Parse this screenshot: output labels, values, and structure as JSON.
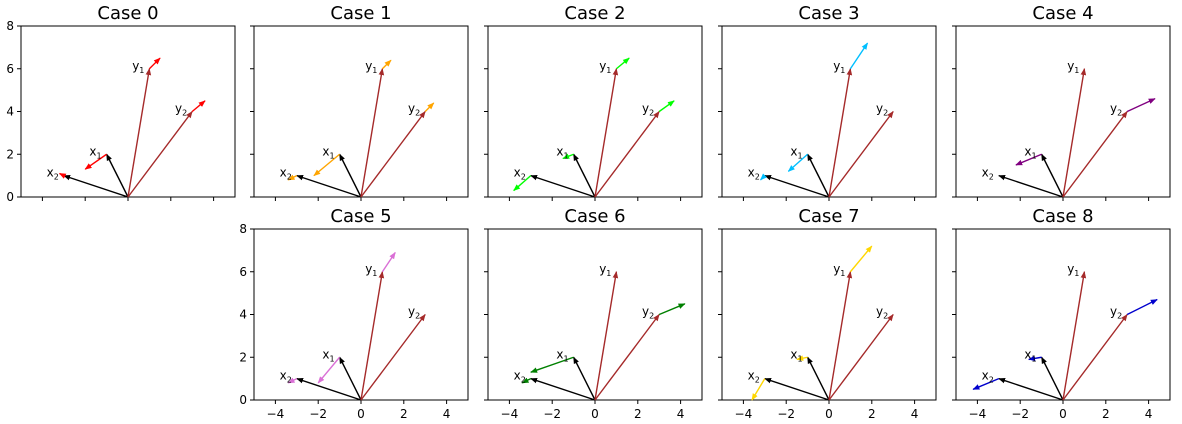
{
  "chart_data": {
    "type": "vector-field-grid",
    "xlim": [
      -5,
      5
    ],
    "ylim": [
      0,
      8
    ],
    "xticks": [
      -4,
      -2,
      0,
      2,
      4
    ],
    "yticks": [
      0,
      2,
      4,
      6,
      8
    ],
    "x_tick_labels": [
      "−4",
      "−2",
      "0",
      "2",
      "4"
    ],
    "y_tick_labels": [
      "0",
      "2",
      "4",
      "6",
      "8"
    ],
    "base_vectors": [
      {
        "name": "x1",
        "letter": "x",
        "sub": "1",
        "from": [
          0,
          0
        ],
        "to": [
          -1,
          2
        ],
        "color": "#000000"
      },
      {
        "name": "x2",
        "letter": "x",
        "sub": "2",
        "from": [
          0,
          0
        ],
        "to": [
          -3,
          1
        ],
        "color": "#000000"
      },
      {
        "name": "y1",
        "letter": "y",
        "sub": "1",
        "from": [
          0,
          0
        ],
        "to": [
          1,
          6
        ],
        "color": "#a52a2a"
      },
      {
        "name": "y2",
        "letter": "y",
        "sub": "2",
        "from": [
          0,
          0
        ],
        "to": [
          3,
          4
        ],
        "color": "#a52a2a"
      }
    ],
    "cases": [
      {
        "title": "Case 0",
        "color": "#ff0000",
        "residuals": {
          "x1": [
            -1.0,
            -0.7
          ],
          "x2": [
            -0.2,
            0.1
          ],
          "y1": [
            0.5,
            0.5
          ],
          "y2": [
            0.6,
            0.5
          ]
        }
      },
      {
        "title": "Case 1",
        "color": "#ffa500",
        "residuals": {
          "x1": [
            -1.2,
            -1.0
          ],
          "x2": [
            -0.4,
            -0.2
          ],
          "y1": [
            0.4,
            0.4
          ],
          "y2": [
            0.4,
            0.4
          ]
        }
      },
      {
        "title": "Case 2",
        "color": "#00ff00",
        "residuals": {
          "x1": [
            -0.5,
            -0.2
          ],
          "x2": [
            -0.8,
            -0.7
          ],
          "y1": [
            0.6,
            0.5
          ],
          "y2": [
            0.7,
            0.5
          ]
        }
      },
      {
        "title": "Case 3",
        "color": "#00bfff",
        "residuals": {
          "x1": [
            -0.9,
            -0.8
          ],
          "x2": [
            -0.2,
            -0.2
          ],
          "y1": [
            0.8,
            1.2
          ],
          "y2": [
            0,
            0
          ]
        }
      },
      {
        "title": "Case 4",
        "color": "#800080",
        "residuals": {
          "x1": [
            -1.2,
            -0.5
          ],
          "x2": [
            0,
            0
          ],
          "y1": [
            0,
            0
          ],
          "y2": [
            1.3,
            0.6
          ]
        }
      },
      {
        "title": "Case 5",
        "color": "#da70d6",
        "residuals": {
          "x1": [
            -1.0,
            -1.2
          ],
          "x2": [
            -0.4,
            -0.2
          ],
          "y1": [
            0.6,
            0.9
          ],
          "y2": [
            0,
            0
          ]
        }
      },
      {
        "title": "Case 6",
        "color": "#008000",
        "residuals": {
          "x1": [
            -2.0,
            -0.7
          ],
          "x2": [
            -0.4,
            -0.2
          ],
          "y1": [
            0,
            0
          ],
          "y2": [
            1.2,
            0.5
          ]
        }
      },
      {
        "title": "Case 7",
        "color": "#ffd700",
        "residuals": {
          "x1": [
            -0.5,
            -0.1
          ],
          "x2": [
            -0.6,
            -1.0
          ],
          "y1": [
            1.0,
            1.2
          ],
          "y2": [
            0,
            0
          ]
        }
      },
      {
        "title": "Case 8",
        "color": "#0000cd",
        "residuals": {
          "x1": [
            -0.6,
            -0.1
          ],
          "x2": [
            -1.2,
            -0.5
          ],
          "y1": [
            0,
            0
          ],
          "y2": [
            1.4,
            0.7
          ]
        }
      }
    ]
  }
}
